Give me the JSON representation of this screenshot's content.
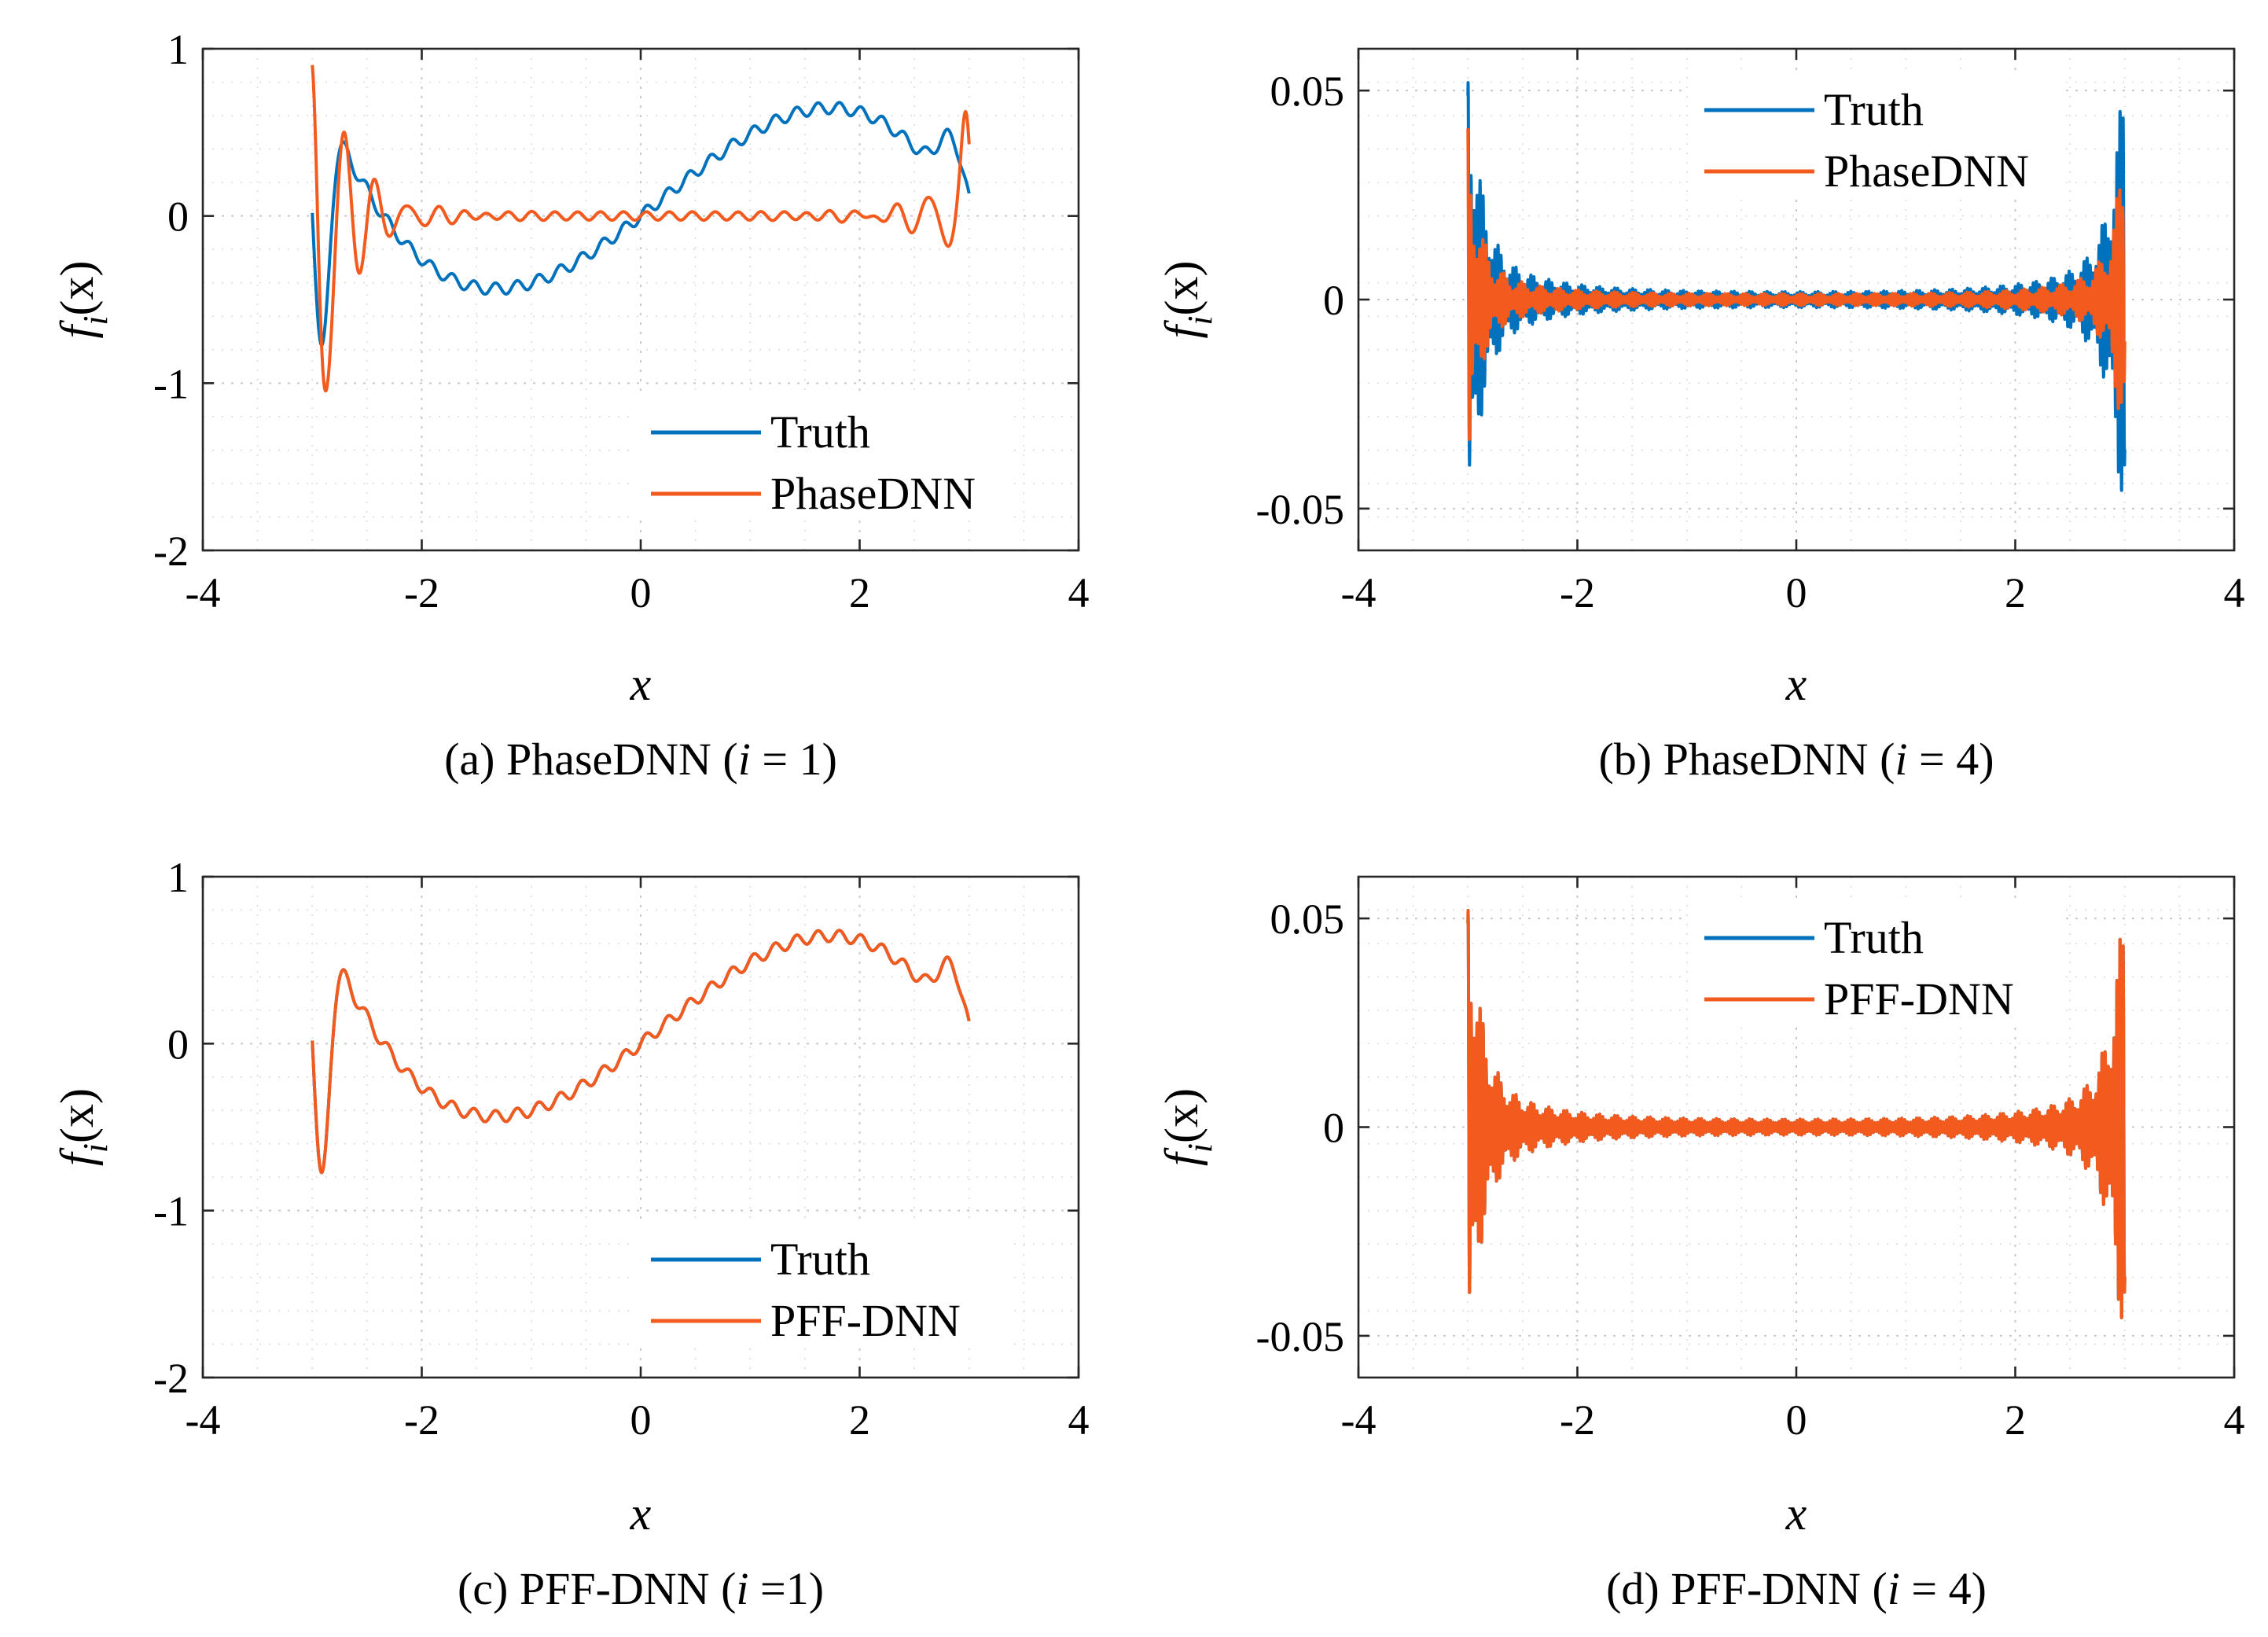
{
  "figure": {
    "colors": {
      "truth": "#0072BD",
      "model": "#F25A1E"
    }
  },
  "chart_data": [
    {
      "id": "a",
      "type": "line",
      "caption_prefix": "(a)",
      "caption_main": "PhaseDNN (",
      "caption_italic": "i",
      "caption_suffix": " = 1)",
      "xlabel": "x",
      "ylabel_f": "f",
      "ylabel_sub": "i",
      "ylabel_arg": "(x)",
      "xlim": [
        -4,
        4
      ],
      "ylim": [
        -2,
        1
      ],
      "xticks": [
        -4,
        -2,
        0,
        2,
        4
      ],
      "xtick_labels": [
        "-4",
        "-2",
        "0",
        "2",
        "4"
      ],
      "yticks": [
        -2,
        -1,
        0,
        1
      ],
      "ytick_labels": [
        "-2",
        "-1",
        "0",
        "1"
      ],
      "legend": [
        "Truth",
        "PhaseDNN"
      ],
      "legend_position": "bottom-right",
      "grid": true,
      "series": [
        {
          "name": "Truth",
          "curve": "f1_truth",
          "x_range": [
            -3,
            3
          ]
        },
        {
          "name": "PhaseDNN",
          "curve": "f1_phasednn",
          "x_range": [
            -3,
            3
          ]
        }
      ]
    },
    {
      "id": "b",
      "type": "line",
      "caption_prefix": "(b)",
      "caption_main": "PhaseDNN (",
      "caption_italic": "i",
      "caption_suffix": " = 4)",
      "xlabel": "x",
      "ylabel_f": "f",
      "ylabel_sub": "i",
      "ylabel_arg": "(x)",
      "xlim": [
        -4,
        4
      ],
      "ylim": [
        -0.06,
        0.06
      ],
      "xticks": [
        -4,
        -2,
        0,
        2,
        4
      ],
      "xtick_labels": [
        "-4",
        "-2",
        "0",
        "2",
        "4"
      ],
      "yticks": [
        -0.05,
        0,
        0.05
      ],
      "ytick_labels": [
        "-0.05",
        "0",
        "0.05"
      ],
      "legend": [
        "Truth",
        "PhaseDNN"
      ],
      "legend_position": "top-center",
      "grid": true,
      "series": [
        {
          "name": "Truth",
          "curve": "f4_truth",
          "x_range": [
            -3,
            3
          ]
        },
        {
          "name": "PhaseDNN",
          "curve": "f4_phasednn",
          "x_range": [
            -3,
            3
          ]
        }
      ]
    },
    {
      "id": "c",
      "type": "line",
      "caption_prefix": "(c)",
      "caption_main": "PFF-DNN (",
      "caption_italic": "i",
      "caption_suffix": " =1)",
      "xlabel": "x",
      "ylabel_f": "f",
      "ylabel_sub": "i",
      "ylabel_arg": "(x)",
      "xlim": [
        -4,
        4
      ],
      "ylim": [
        -2,
        1
      ],
      "xticks": [
        -4,
        -2,
        0,
        2,
        4
      ],
      "xtick_labels": [
        "-4",
        "-2",
        "0",
        "2",
        "4"
      ],
      "yticks": [
        -2,
        -1,
        0,
        1
      ],
      "ytick_labels": [
        "-2",
        "-1",
        "0",
        "1"
      ],
      "legend": [
        "Truth",
        "PFF-DNN"
      ],
      "legend_position": "bottom-right",
      "grid": true,
      "series": [
        {
          "name": "Truth",
          "curve": "f1_truth",
          "x_range": [
            -3,
            3
          ]
        },
        {
          "name": "PFF-DNN",
          "curve": "f1_truth",
          "x_range": [
            -3,
            3
          ]
        }
      ]
    },
    {
      "id": "d",
      "type": "line",
      "caption_prefix": "(d)",
      "caption_main": "PFF-DNN (",
      "caption_italic": "i",
      "caption_suffix": " = 4)",
      "xlabel": "x",
      "ylabel_f": "f",
      "ylabel_sub": "i",
      "ylabel_arg": "(x)",
      "xlim": [
        -4,
        4
      ],
      "ylim": [
        -0.06,
        0.06
      ],
      "xticks": [
        -4,
        -2,
        0,
        2,
        4
      ],
      "xtick_labels": [
        "-4",
        "-2",
        "0",
        "2",
        "4"
      ],
      "yticks": [
        -0.05,
        0,
        0.05
      ],
      "ytick_labels": [
        "-0.05",
        "0",
        "0.05"
      ],
      "legend": [
        "Truth",
        "PFF-DNN"
      ],
      "legend_position": "top-center",
      "grid": true,
      "series": [
        {
          "name": "Truth",
          "curve": "f4_truth",
          "x_range": [
            -3,
            3
          ]
        },
        {
          "name": "PFF-DNN",
          "curve": "f4_truth",
          "x_range": [
            -3,
            3
          ]
        }
      ]
    }
  ]
}
